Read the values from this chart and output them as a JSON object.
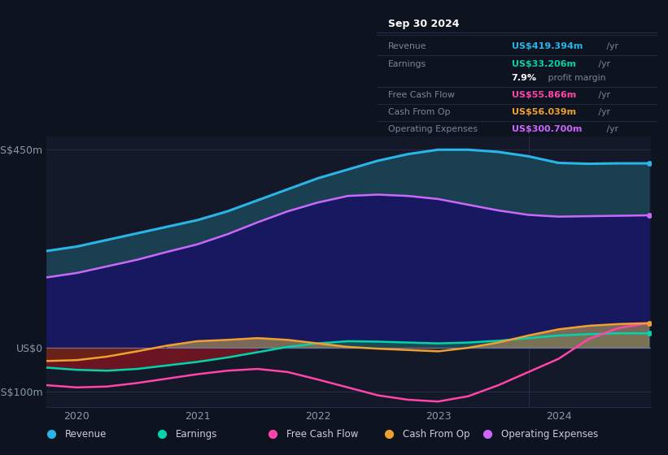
{
  "bg_color": "#0e1320",
  "plot_bg_color": "#131929",
  "title": "Sep 30 2024",
  "x_years": [
    2019.75,
    2020.0,
    2020.25,
    2020.5,
    2020.75,
    2021.0,
    2021.25,
    2021.5,
    2021.75,
    2022.0,
    2022.25,
    2022.5,
    2022.75,
    2023.0,
    2023.25,
    2023.5,
    2023.75,
    2024.0,
    2024.25,
    2024.5,
    2024.75
  ],
  "revenue": [
    220,
    230,
    245,
    260,
    275,
    290,
    310,
    335,
    360,
    385,
    405,
    425,
    440,
    450,
    450,
    445,
    435,
    420,
    418,
    419,
    419
  ],
  "op_expenses": [
    160,
    170,
    185,
    200,
    218,
    235,
    258,
    285,
    310,
    330,
    345,
    348,
    345,
    338,
    325,
    312,
    302,
    298,
    299,
    300,
    301
  ],
  "earnings": [
    -45,
    -50,
    -52,
    -48,
    -40,
    -32,
    -22,
    -10,
    2,
    10,
    15,
    14,
    12,
    10,
    12,
    16,
    22,
    28,
    31,
    33,
    33
  ],
  "free_cash_flow": [
    -85,
    -90,
    -88,
    -80,
    -70,
    -60,
    -52,
    -48,
    -55,
    -72,
    -90,
    -108,
    -118,
    -122,
    -110,
    -85,
    -55,
    -25,
    20,
    45,
    56
  ],
  "cash_from_op": [
    -30,
    -28,
    -20,
    -8,
    5,
    15,
    18,
    22,
    18,
    10,
    2,
    -2,
    -5,
    -8,
    0,
    12,
    28,
    42,
    50,
    54,
    56
  ],
  "ylim": [
    -135,
    480
  ],
  "yticks": [
    -100,
    0,
    450
  ],
  "ytick_labels": [
    "-US$100m",
    "US$0",
    "US$450m"
  ],
  "xticks": [
    2020,
    2021,
    2022,
    2023,
    2024
  ],
  "line_colors": {
    "revenue": "#29b5e8",
    "op_expenses": "#cc66ff",
    "earnings": "#00d4aa",
    "free_cash_flow": "#ff44aa",
    "cash_from_op": "#f0a030"
  },
  "fill_revenue_op": "#1a4a5a",
  "fill_op": "#1a1560",
  "fill_earnings_neg": "#7a1520",
  "fill_cash_pos": "#a07828",
  "fill_cash_neg": "#6a3010",
  "fill_gray": "#606878",
  "legend": [
    {
      "label": "Revenue",
      "color": "#29b5e8"
    },
    {
      "label": "Earnings",
      "color": "#00d4aa"
    },
    {
      "label": "Free Cash Flow",
      "color": "#ff44aa"
    },
    {
      "label": "Cash From Op",
      "color": "#f0a030"
    },
    {
      "label": "Operating Expenses",
      "color": "#cc66ff"
    }
  ],
  "table_rows": [
    {
      "label": "Revenue",
      "value": "US$419.394m",
      "suffix": " /yr",
      "color": "#29b5e8"
    },
    {
      "label": "Earnings",
      "value": "US$33.206m",
      "suffix": " /yr",
      "color": "#00d4aa"
    },
    {
      "label": "",
      "value": "7.9%",
      "suffix": " profit margin",
      "color": "#ffffff"
    },
    {
      "label": "Free Cash Flow",
      "value": "US$55.866m",
      "suffix": " /yr",
      "color": "#ff44aa"
    },
    {
      "label": "Cash From Op",
      "value": "US$56.039m",
      "suffix": " /yr",
      "color": "#f0a030"
    },
    {
      "label": "Operating Expenses",
      "value": "US$300.700m",
      "suffix": " /yr",
      "color": "#cc66ff"
    }
  ]
}
